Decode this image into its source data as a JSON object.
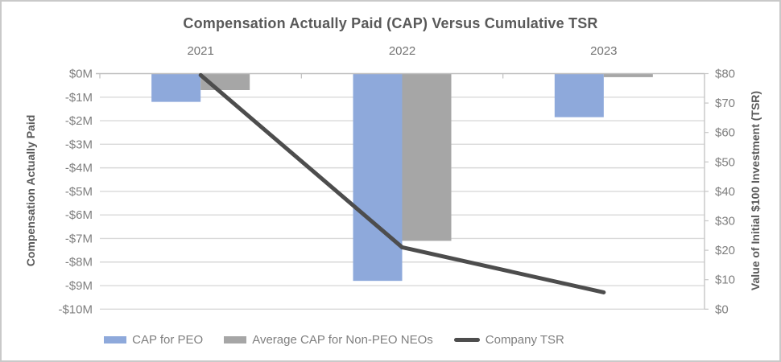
{
  "title": "Compensation Actually Paid (CAP) Versus Cumulative TSR",
  "chart_data": {
    "type": "bar",
    "subtype": "bar-line-combo",
    "categories": [
      "2021",
      "2022",
      "2023"
    ],
    "series": [
      {
        "name": "CAP for PEO",
        "type": "bar",
        "axis": "left",
        "color": "#8ea9db",
        "values": [
          -1.2,
          -8.8,
          -1.85
        ]
      },
      {
        "name": "Average CAP for Non-PEO NEOs",
        "type": "bar",
        "axis": "left",
        "color": "#a6a6a6",
        "values": [
          -0.7,
          -7.1,
          -0.15
        ]
      },
      {
        "name": "Company TSR",
        "type": "line",
        "axis": "right",
        "color": "#4d4d4d",
        "values": [
          79.5,
          21,
          5.7
        ]
      }
    ],
    "left_axis": {
      "title": "Compensation Actually Paid",
      "ticks": [
        "$0M",
        "-$1M",
        "-$2M",
        "-$3M",
        "-$4M",
        "-$5M",
        "-$6M",
        "-$7M",
        "-$8M",
        "-$9M",
        "-$10M"
      ],
      "max": 0,
      "min": -10,
      "unit": "millions USD"
    },
    "right_axis": {
      "title": "Value of Initial $100 Investment (TSR)",
      "ticks": [
        "$80",
        "$70",
        "$60",
        "$50",
        "$40",
        "$30",
        "$20",
        "$10",
        "$0"
      ],
      "max": 80,
      "min": 0
    },
    "legend_position": "bottom",
    "grid": true,
    "style": {
      "gridline_color": "#d9d9d9",
      "axis_line_color": "#bfbfbf",
      "right_axis_line_color": "#c6c6c6",
      "tick_label_color": "#7f7f7f",
      "category_label_color": "#737373",
      "title_color": "#595959"
    }
  }
}
